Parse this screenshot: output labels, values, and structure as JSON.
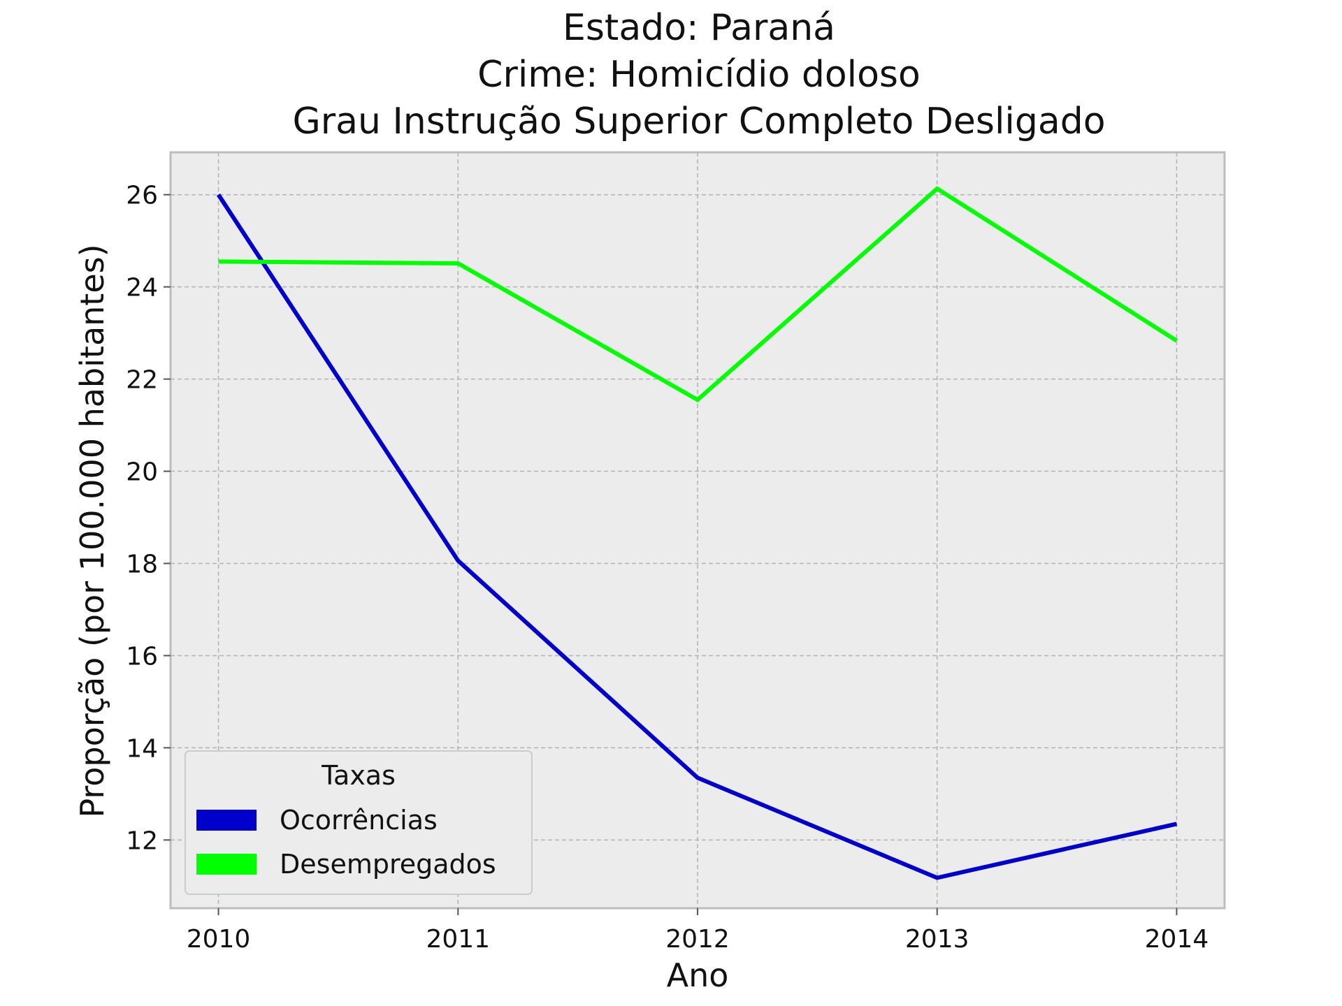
{
  "chart_data": {
    "type": "line",
    "title_lines": [
      "Estado: Paraná",
      "Crime: Homicídio doloso",
      "Grau Instrução  Superior Completo   Desligado"
    ],
    "xlabel": "Ano",
    "ylabel": "Proporção (por 100.000 habitantes)",
    "x": [
      2010,
      2011,
      2012,
      2013,
      2014
    ],
    "x_tick_labels": [
      "2010",
      "2011",
      "2012",
      "2013",
      "2014"
    ],
    "y_ticks": [
      12,
      14,
      16,
      18,
      20,
      22,
      24,
      26
    ],
    "y_tick_labels": [
      "12",
      "14",
      "16",
      "18",
      "20",
      "22",
      "24",
      "26"
    ],
    "xlim": [
      2009.8,
      2014.2
    ],
    "ylim": [
      10.52,
      26.92
    ],
    "grid": true,
    "legend": {
      "title": "Taxas",
      "placement": "lower-left"
    },
    "series": [
      {
        "name": "Ocorrências",
        "color": "#0000cc",
        "values": [
          26.0,
          18.06,
          13.35,
          11.18,
          12.35
        ]
      },
      {
        "name": "Desempregados",
        "color": "#00ff00",
        "values": [
          24.55,
          24.51,
          21.55,
          26.13,
          22.83
        ]
      }
    ]
  }
}
